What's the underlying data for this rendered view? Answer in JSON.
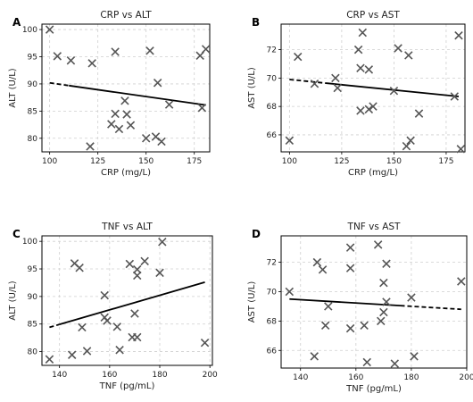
{
  "chart_data": [
    {
      "type": "scatter",
      "panel_letter": "A",
      "title": "CRP vs ALT",
      "xlabel": "CRP (mg/L)",
      "ylabel": "ALT (U/L)",
      "xlim": [
        96,
        183
      ],
      "ylim": [
        77.5,
        101
      ],
      "xticks": [
        100,
        125,
        150,
        175
      ],
      "yticks": [
        80,
        85,
        90,
        95,
        100
      ],
      "points": [
        [
          100,
          100
        ],
        [
          104,
          95.1
        ],
        [
          111,
          94.3
        ],
        [
          122,
          93.8
        ],
        [
          134,
          95.9
        ],
        [
          152,
          96.1
        ],
        [
          178,
          95.2
        ],
        [
          181,
          96.4
        ],
        [
          156,
          90.2
        ],
        [
          162,
          86.2
        ],
        [
          139,
          86.9
        ],
        [
          134,
          84.5
        ],
        [
          140,
          84.4
        ],
        [
          132,
          82.6
        ],
        [
          136,
          81.7
        ],
        [
          142,
          82.4
        ],
        [
          121,
          78.5
        ],
        [
          150,
          80.0
        ],
        [
          155,
          80.3
        ],
        [
          158,
          79.4
        ],
        [
          179,
          85.6
        ]
      ],
      "fit": {
        "x0": 100,
        "y0": 90.2,
        "x1": 181,
        "y1": 86.1,
        "dash_until": 110
      }
    },
    {
      "type": "scatter",
      "panel_letter": "B",
      "title": "CRP vs AST",
      "xlabel": "CRP (mg/L)",
      "ylabel": "AST (U/L)",
      "xlim": [
        96,
        184
      ],
      "ylim": [
        64.8,
        73.8
      ],
      "xticks": [
        100,
        125,
        150,
        175
      ],
      "yticks": [
        66,
        68,
        70,
        72
      ],
      "points": [
        [
          100,
          65.6
        ],
        [
          104,
          71.5
        ],
        [
          112,
          69.6
        ],
        [
          122,
          70.0
        ],
        [
          123,
          69.3
        ],
        [
          133,
          72.0
        ],
        [
          135,
          73.2
        ],
        [
          134,
          70.7
        ],
        [
          138,
          70.6
        ],
        [
          134,
          67.7
        ],
        [
          138,
          67.8
        ],
        [
          140,
          68.0
        ],
        [
          152,
          72.1
        ],
        [
          157,
          71.6
        ],
        [
          150,
          69.1
        ],
        [
          162,
          67.5
        ],
        [
          156,
          65.2
        ],
        [
          158,
          65.6
        ],
        [
          181,
          73.0
        ],
        [
          179,
          68.7
        ],
        [
          182,
          65.0
        ]
      ],
      "fit": {
        "x0": 100,
        "y0": 69.9,
        "x1": 181,
        "y1": 68.7,
        "dash_until": 118
      }
    },
    {
      "type": "scatter",
      "panel_letter": "C",
      "title": "TNF vs ALT",
      "xlabel": "TNF (pg/mL)",
      "ylabel": "ALT (U/L)",
      "xlim": [
        133,
        201
      ],
      "ylim": [
        77.5,
        101
      ],
      "xticks": [
        140,
        160,
        180,
        200
      ],
      "yticks": [
        80,
        85,
        90,
        95,
        100
      ],
      "points": [
        [
          136,
          78.6
        ],
        [
          145,
          79.4
        ],
        [
          149,
          84.4
        ],
        [
          151,
          80.1
        ],
        [
          146,
          96.0
        ],
        [
          148,
          95.2
        ],
        [
          158,
          90.2
        ],
        [
          158,
          86.2
        ],
        [
          159,
          85.6
        ],
        [
          163,
          84.5
        ],
        [
          164,
          80.3
        ],
        [
          168,
          95.9
        ],
        [
          171,
          94.9
        ],
        [
          171,
          93.8
        ],
        [
          174,
          96.4
        ],
        [
          170,
          86.9
        ],
        [
          169,
          82.6
        ],
        [
          171,
          82.6
        ],
        [
          180,
          94.3
        ],
        [
          181,
          99.9
        ],
        [
          198,
          81.6
        ]
      ],
      "fit": {
        "x0": 136,
        "y0": 84.4,
        "x1": 198,
        "y1": 92.6,
        "dash_until": 140
      }
    },
    {
      "type": "scatter",
      "panel_letter": "D",
      "title": "TNF vs AST",
      "xlabel": "TNF (pg/mL)",
      "ylabel": "AST (U/L)",
      "xlim": [
        133,
        200
      ],
      "ylim": [
        64.8,
        73.8
      ],
      "xticks": [
        140,
        160,
        180,
        200
      ],
      "yticks": [
        66,
        68,
        70,
        72
      ],
      "points": [
        [
          136,
          70.0
        ],
        [
          146,
          72.0
        ],
        [
          148,
          71.5
        ],
        [
          150,
          69.0
        ],
        [
          145,
          65.6
        ],
        [
          149,
          67.7
        ],
        [
          158,
          73.0
        ],
        [
          158,
          71.6
        ],
        [
          158,
          67.5
        ],
        [
          163,
          67.7
        ],
        [
          164,
          65.2
        ],
        [
          168,
          73.2
        ],
        [
          170,
          70.6
        ],
        [
          171,
          71.9
        ],
        [
          171,
          69.3
        ],
        [
          170,
          68.6
        ],
        [
          169,
          68.0
        ],
        [
          174,
          65.1
        ],
        [
          180,
          69.6
        ],
        [
          181,
          65.6
        ],
        [
          198,
          70.7
        ]
      ],
      "fit": {
        "x0": 136,
        "y0": 69.5,
        "x1": 198,
        "y1": 68.8,
        "dash_until": 176,
        "dash_after": true
      }
    }
  ]
}
